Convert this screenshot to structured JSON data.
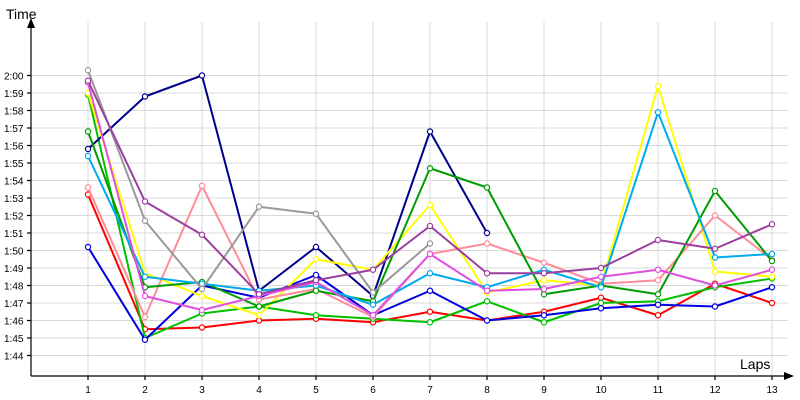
{
  "chart_data": {
    "type": "line",
    "xlabel": "Laps",
    "ylabel": "Time",
    "x": [
      1,
      2,
      3,
      4,
      5,
      6,
      7,
      8,
      9,
      10,
      11,
      12,
      13
    ],
    "x_tick_labels": [
      "1",
      "2",
      "3",
      "4",
      "5",
      "6",
      "7",
      "8",
      "9",
      "10",
      "11",
      "12",
      "13"
    ],
    "y_tick_labels": [
      "1:44",
      "1:45",
      "1:46",
      "1:47",
      "1:48",
      "1:49",
      "1:50",
      "1:51",
      "1:52",
      "1:53",
      "1:54",
      "1:55",
      "1:56",
      "1:57",
      "1:58",
      "1:59",
      "2:00"
    ],
    "y_unit": "seconds",
    "y_tick_seconds": [
      104,
      105,
      106,
      107,
      108,
      109,
      110,
      111,
      112,
      113,
      114,
      115,
      116,
      117,
      118,
      119,
      120
    ],
    "ylim_seconds": [
      103,
      122
    ],
    "grid": true,
    "series": [
      {
        "color": "#ff0000",
        "values": [
          113.2,
          105.5,
          105.6,
          106.0,
          106.1,
          105.9,
          106.5,
          106.0,
          106.5,
          107.3,
          106.3,
          108.1,
          107.0
        ]
      },
      {
        "color": "#00c000",
        "values": [
          118.9,
          105.0,
          106.4,
          106.8,
          106.3,
          106.1,
          105.9,
          107.1,
          105.9,
          107.0,
          107.1,
          107.9,
          108.4
        ]
      },
      {
        "color": "#0000e0",
        "values": [
          110.2,
          104.9,
          108.0,
          107.3,
          108.6,
          106.3,
          107.7,
          106.0,
          106.3,
          106.7,
          106.9,
          106.8,
          107.9
        ]
      },
      {
        "color": "#00008b",
        "values": [
          115.8,
          118.8,
          120.0,
          107.7,
          110.2,
          107.4,
          116.8,
          111.0,
          null,
          null,
          null,
          null,
          null
        ]
      },
      {
        "color": "#ffff00",
        "values": [
          119.0,
          108.7,
          107.4,
          106.3,
          109.5,
          108.9,
          112.6,
          107.6,
          108.3,
          108.0,
          119.4,
          108.8,
          108.5
        ]
      },
      {
        "color": "#ff8c9a",
        "values": [
          113.6,
          106.2,
          113.7,
          107.2,
          107.8,
          106.2,
          109.8,
          110.4,
          109.3,
          108.1,
          108.3,
          112.0,
          109.5
        ]
      },
      {
        "color": "#009c00",
        "values": [
          116.8,
          107.9,
          108.2,
          106.8,
          107.7,
          107.1,
          114.7,
          113.6,
          107.5,
          108.0,
          107.5,
          113.4,
          109.4
        ]
      },
      {
        "color": "#00aaee",
        "values": [
          115.4,
          108.5,
          108.1,
          107.7,
          108.0,
          106.9,
          108.7,
          107.9,
          108.9,
          107.9,
          117.9,
          109.6,
          109.8
        ]
      },
      {
        "color": "#e050e0",
        "values": [
          119.6,
          107.4,
          106.6,
          107.4,
          108.2,
          106.3,
          109.8,
          107.7,
          107.8,
          108.5,
          108.9,
          108.0,
          108.9
        ]
      },
      {
        "color": "#999999",
        "values": [
          120.3,
          111.7,
          107.8,
          112.5,
          112.1,
          107.6,
          110.4,
          null,
          null,
          null,
          null,
          null,
          null
        ]
      },
      {
        "color": "#9b3fa0",
        "values": [
          119.7,
          112.8,
          110.9,
          107.5,
          108.3,
          108.9,
          111.4,
          108.7,
          108.7,
          109.0,
          110.6,
          110.1,
          111.5
        ]
      }
    ]
  }
}
